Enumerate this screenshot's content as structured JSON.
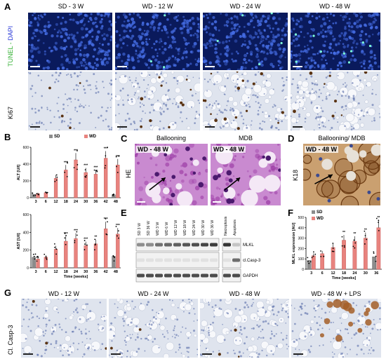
{
  "panels": {
    "A": "A",
    "B": "B",
    "C": "C",
    "D": "D",
    "E": "E",
    "F": "F",
    "G": "G"
  },
  "panelA": {
    "columns": [
      "SD - 3 W",
      "WD - 12 W",
      "WD - 24 W",
      "WD - 48 W"
    ],
    "row1_label_tunel": "TUNEL - ",
    "row1_label_dapi": "DAPI",
    "row2_label": "Ki67"
  },
  "panelC": {
    "titles": [
      "Ballooning",
      "MDB"
    ],
    "row_label": "HE",
    "overlay": "WD - 48 W"
  },
  "panelD": {
    "title": "Ballooning/ MDB",
    "row_label": "K18",
    "overlay": "WD - 48 W"
  },
  "panelE": {
    "lanes": [
      "SD 3 W",
      "SD 36 W",
      "WD 3 W",
      "WD 6 W",
      "WD 12 W",
      "WD 18 W",
      "WD 24 W",
      "WD 30 W",
      "WD 36 W",
      "Necroptosis",
      "Apoptosis"
    ],
    "bands": [
      "MLKL",
      "cl.Casp-3",
      "GAPDH"
    ]
  },
  "panelG": {
    "columns": [
      "WD - 12 W",
      "WD - 24 W",
      "WD - 48 W",
      "WD - 48 W + LPS"
    ],
    "row_label": "Cl. Casp-3"
  },
  "colors": {
    "sd": "#8c8c8c",
    "wd": "#e8837e",
    "wd_edge": "#c0504d",
    "tunel_bg": "#0a1a5c",
    "ihc_bg": "#dfe4ee",
    "he_bg": "#c98ad0",
    "k18_bg": "#caa070"
  },
  "chart_data": [
    {
      "id": "B-ALT",
      "type": "bar",
      "legend": [
        {
          "name": "SD",
          "color": "#8c8c8c"
        },
        {
          "name": "WD",
          "color": "#e8837e"
        }
      ],
      "categories": [
        "3",
        "6",
        "12",
        "18",
        "24",
        "30",
        "36",
        "42",
        "48"
      ],
      "series": [
        {
          "name": "SD",
          "values": [
            40,
            null,
            null,
            null,
            null,
            null,
            null,
            null,
            35
          ]
        },
        {
          "name": "WD",
          "values": [
            50,
            60,
            230,
            330,
            450,
            300,
            280,
            470,
            390
          ]
        }
      ],
      "significance": [
        "",
        "",
        "",
        "***",
        "***",
        "***",
        "***",
        "***",
        "***"
      ],
      "ylabel": "ALT [U/l]",
      "xlabel": "",
      "yticks": [
        0,
        200,
        400,
        600
      ],
      "ylim": [
        0,
        600
      ]
    },
    {
      "id": "B-AST",
      "type": "bar",
      "categories": [
        "3",
        "6",
        "12",
        "18",
        "24",
        "30",
        "36",
        "42",
        "48"
      ],
      "series": [
        {
          "name": "SD",
          "values": [
            120,
            null,
            null,
            null,
            null,
            null,
            null,
            null,
            130
          ]
        },
        {
          "name": "WD",
          "values": [
            100,
            120,
            210,
            300,
            330,
            250,
            270,
            440,
            380
          ]
        }
      ],
      "significance": [
        "",
        "",
        "",
        "***",
        "***",
        "***",
        "**",
        "***",
        "***"
      ],
      "ylabel": "AST [U/l]",
      "xlabel": "Time [weeks]",
      "yticks": [
        0,
        200,
        400,
        600
      ],
      "ylim": [
        0,
        600
      ]
    },
    {
      "id": "F-MLKL",
      "type": "bar",
      "legend": [
        {
          "name": "SD",
          "color": "#8c8c8c"
        },
        {
          "name": "WD",
          "color": "#e8837e"
        }
      ],
      "categories": [
        "3",
        "6",
        "12",
        "18",
        "24",
        "30",
        "36"
      ],
      "series": [
        {
          "name": "SD",
          "values": [
            85,
            null,
            null,
            null,
            null,
            null,
            120
          ]
        },
        {
          "name": "WD",
          "values": [
            130,
            150,
            210,
            280,
            270,
            300,
            400
          ]
        }
      ],
      "significance": [
        "",
        "",
        "",
        "**",
        "**",
        "**",
        "**"
      ],
      "ylabel": "MLKL expression [AU]",
      "xlabel": "Time [weeks]",
      "yticks": [
        0,
        100,
        200,
        300,
        400,
        500
      ],
      "ylim": [
        0,
        500
      ]
    }
  ]
}
